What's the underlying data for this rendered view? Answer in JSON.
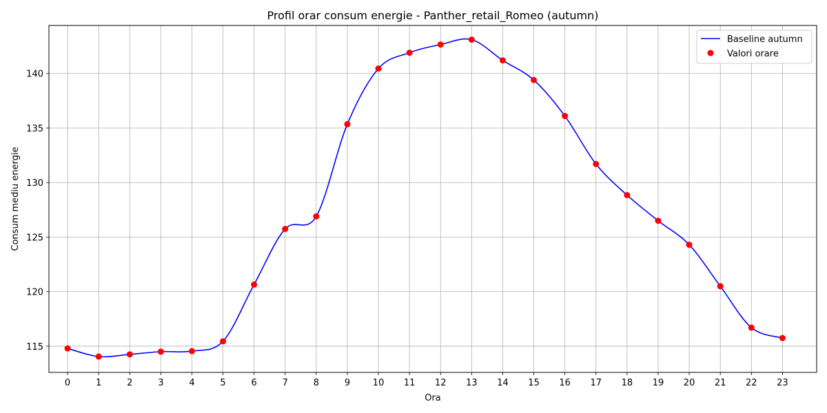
{
  "chart_data": {
    "type": "line",
    "title": "Profil orar consum energie - Panther_retail_Romeo (autumn)",
    "xlabel": "Ora",
    "ylabel": "Consum mediu energie",
    "categories": [
      "0",
      "1",
      "2",
      "3",
      "4",
      "5",
      "6",
      "7",
      "8",
      "9",
      "10",
      "11",
      "12",
      "13",
      "14",
      "15",
      "16",
      "17",
      "18",
      "19",
      "20",
      "21",
      "22",
      "23"
    ],
    "x": [
      0,
      1,
      2,
      3,
      4,
      5,
      6,
      7,
      8,
      9,
      10,
      11,
      12,
      13,
      14,
      15,
      16,
      17,
      18,
      19,
      20,
      21,
      22,
      23
    ],
    "y_ticks": [
      115,
      120,
      125,
      130,
      135,
      140
    ],
    "y_tick_labels": [
      "115",
      "120",
      "125",
      "130",
      "135",
      "140"
    ],
    "xlim": [
      -0.6,
      24.1
    ],
    "ylim": [
      112.6,
      144.4
    ],
    "grid": true,
    "legend_position": "top-right",
    "series": [
      {
        "name": "Baseline autumn",
        "kind": "smooth-line",
        "color": "#0000ff",
        "values": [
          114.8,
          114.05,
          114.25,
          114.5,
          114.55,
          115.45,
          120.65,
          125.75,
          126.9,
          135.35,
          140.45,
          141.9,
          142.65,
          143.1,
          141.2,
          139.4,
          136.1,
          131.7,
          128.85,
          126.5,
          124.3,
          120.5,
          116.7,
          115.75
        ]
      },
      {
        "name": "Valori orare",
        "kind": "scatter",
        "color": "#ff0000",
        "values": [
          114.8,
          114.05,
          114.25,
          114.5,
          114.55,
          115.45,
          120.65,
          125.75,
          126.9,
          135.35,
          140.45,
          141.9,
          142.65,
          143.1,
          141.2,
          139.4,
          136.1,
          131.7,
          128.85,
          126.5,
          124.3,
          120.5,
          116.7,
          115.75
        ]
      }
    ]
  }
}
